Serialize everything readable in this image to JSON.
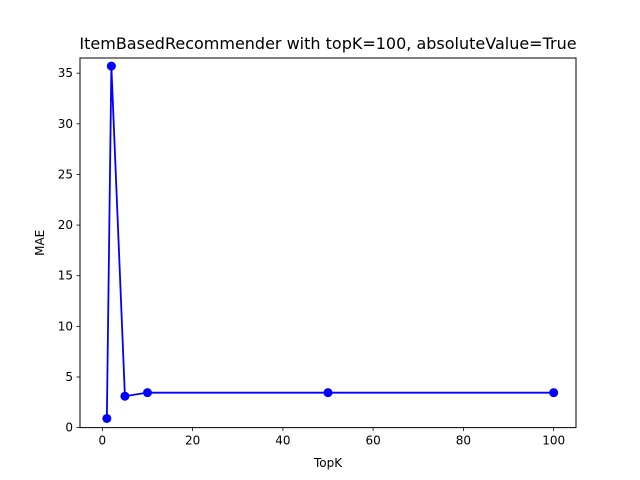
{
  "chart_data": {
    "type": "line",
    "title": "ItemBasedRecommender with topK=100, absoluteValue=True",
    "xlabel": "TopK",
    "ylabel": "MAE",
    "xlim": [
      -4.95,
      104.95
    ],
    "ylim": [
      0,
      36.5
    ],
    "xticks": [
      0,
      20,
      40,
      60,
      80,
      100
    ],
    "yticks": [
      0,
      5,
      10,
      15,
      20,
      25,
      30,
      35
    ],
    "grid": false,
    "series": [
      {
        "x": [
          1,
          2,
          5,
          10,
          50,
          100
        ],
        "y": [
          0.9,
          35.7,
          3.1,
          3.45,
          3.45,
          3.45
        ],
        "color": "#0000ff",
        "marker": "circle"
      }
    ]
  }
}
